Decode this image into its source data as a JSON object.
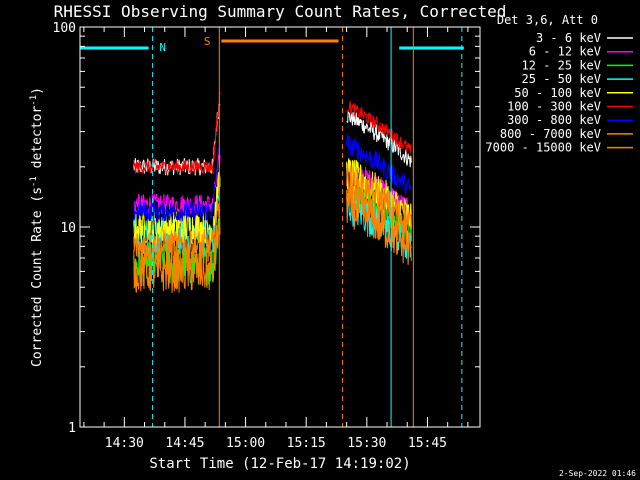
{
  "chart_data": {
    "type": "line",
    "title": "RHESSI Observing Summary Count Rates, Corrected",
    "xlabel": "Start Time (12-Feb-17 14:19:02)",
    "ylabel": "Corrected Count Rate (s",
    "ylabel_sup1": "-1",
    "ylabel_mid": " detector",
    "ylabel_sup2": "-1",
    "ylabel_end": ")",
    "y_scale": "log",
    "ylim": [
      1,
      100
    ],
    "xlim": [
      "14:19:02",
      "15:58:00"
    ],
    "x_ticks": [
      "14:30",
      "14:45",
      "15:00",
      "15:15",
      "15:30",
      "15:45"
    ],
    "y_ticks": [
      "1",
      "10",
      "100"
    ],
    "footer": "2-Sep-2022 01:46",
    "legend": {
      "header": "Det 3,6, Att 0",
      "placement": "top-right outside plot"
    },
    "flags": [
      {
        "label": "N",
        "color": "#00ffff",
        "segments": [
          [
            "14:19:02",
            "14:36:00"
          ],
          [
            "15:38:00",
            "15:54:00"
          ]
        ],
        "boundaries": [
          "14:19:02",
          "14:37:00",
          "15:36:00",
          "15:53:30"
        ]
      },
      {
        "label": "S",
        "color": "#ff8000",
        "segments": [
          [
            "14:54:00",
            "15:23:00"
          ]
        ],
        "boundaries": [
          "14:53:30",
          "15:24:00",
          "15:41:30"
        ]
      }
    ],
    "data_windows": [
      {
        "start": "14:32:20",
        "end": "14:53:40",
        "rise_end_factor": 2.2
      },
      {
        "start": "15:25:00",
        "end": "15:41:00",
        "decay": true
      }
    ],
    "series": [
      {
        "name": "3 - 6 keV",
        "color": "#ffffff",
        "level1": 20,
        "level2": 25,
        "noise": 0.1
      },
      {
        "name": "6 - 12 keV",
        "color": "#ff00ff",
        "level1": 13,
        "level2": 14,
        "noise": 0.12
      },
      {
        "name": "12 - 25 keV",
        "color": "#00ff00",
        "level1": 6.5,
        "level2": 11,
        "noise": 0.25
      },
      {
        "name": "25 - 50 keV",
        "color": "#00ffff",
        "level1": 9,
        "level2": 9,
        "noise": 0.22
      },
      {
        "name": "50 - 100 keV",
        "color": "#ffff00",
        "level1": 10,
        "level2": 13,
        "noise": 0.2
      },
      {
        "name": "100 - 300 keV",
        "color": "#ff0000",
        "level1": 20,
        "level2": 28,
        "noise": 0.08
      },
      {
        "name": "300 - 800 keV",
        "color": "#0000ff",
        "level1": 12,
        "level2": 18,
        "noise": 0.12
      },
      {
        "name": "800 - 7000 keV",
        "color": "#ff8000",
        "level1": 8,
        "level2": 12,
        "noise": 0.2
      },
      {
        "name": "7000 - 15000 keV",
        "color": "#ff8000",
        "level1": 6,
        "level2": 9,
        "noise": 0.25
      }
    ]
  }
}
